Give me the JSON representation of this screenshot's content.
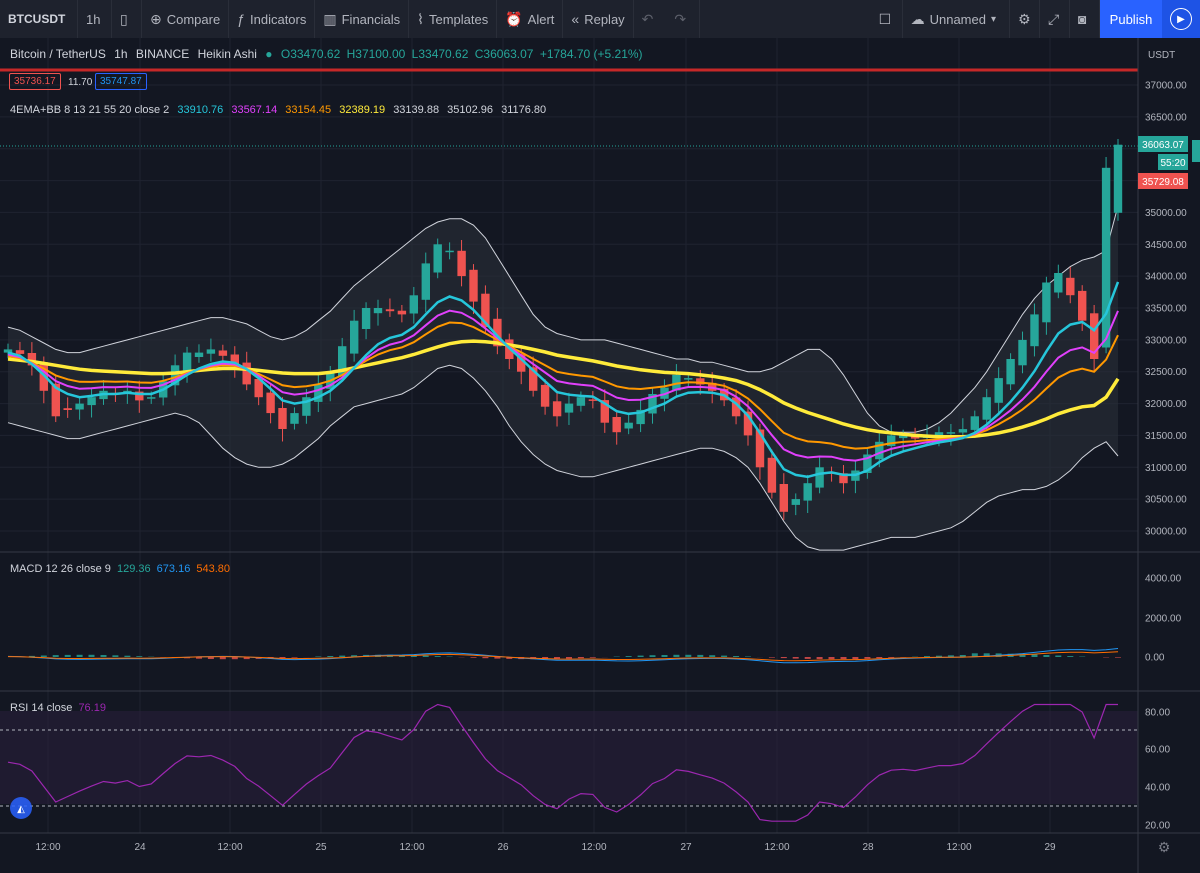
{
  "toolbar": {
    "symbol": "BTCUSDT",
    "interval": "1h",
    "compare": "Compare",
    "indicators": "Indicators",
    "financials": "Financials",
    "templates": "Templates",
    "alert": "Alert",
    "replay": "Replay",
    "layout_name": "Unnamed",
    "publish": "Publish"
  },
  "legend": {
    "pair": "Bitcoin / TetherUS",
    "interval": "1h",
    "exchange": "BINANCE",
    "chart_type": "Heikin Ashi",
    "open": "O33470.62",
    "high": "H37100.00",
    "low": "L33470.62",
    "close": "C36063.07",
    "change": "+1784.70 (+5.21%)",
    "bid": "35736.17",
    "spread": "11.70",
    "ask": "35747.87"
  },
  "ema_legend": {
    "name": "4EMA+BB 8 13 21 55 20 close 2",
    "values": [
      "33910.76",
      "33567.14",
      "33154.45",
      "32389.19",
      "33139.88",
      "35102.96",
      "31176.80"
    ],
    "colors": [
      "#26c6da",
      "#e040fb",
      "#ff9800",
      "#ffeb3b",
      "#d1d4dc",
      "#d1d4dc",
      "#d1d4dc"
    ]
  },
  "macd": {
    "title": "MACD 12 26 close 9",
    "values": [
      "129.36",
      "673.16",
      "543.80"
    ],
    "colors": [
      "#26a69a",
      "#2196f3",
      "#ff6d00"
    ]
  },
  "rsi": {
    "title": "RSI 14 close",
    "value": "76.19"
  },
  "price_axis": {
    "currency": "USDT",
    "ticks": [
      "37000.00",
      "36500.00",
      "36000.00",
      "35500.00",
      "35000.00",
      "34500.00",
      "34000.00",
      "33500.00",
      "33000.00",
      "32500.00",
      "32000.00",
      "31500.00",
      "31000.00",
      "30500.00",
      "30000.00"
    ],
    "last_price": "36063.07",
    "countdown": "55:20",
    "bid_tag": "35729.08"
  },
  "macd_axis": [
    "4000.00",
    "2000.00",
    "0.00"
  ],
  "rsi_axis": [
    "80.00",
    "60.00",
    "40.00",
    "20.00"
  ],
  "time_axis": [
    "12:00",
    "24",
    "12:00",
    "25",
    "12:00",
    "26",
    "12:00",
    "27",
    "12:00",
    "28",
    "12:00",
    "29"
  ],
  "colors": {
    "up": "#26a69a",
    "down": "#ef5350",
    "accent": "#2962ff",
    "background": "#131722"
  },
  "chart_data": {
    "type": "candlestick",
    "title": "Bitcoin / TetherUS 1h BINANCE Heikin Ashi",
    "ylim": [
      29700,
      37250
    ],
    "close": [
      32850,
      32780,
      32600,
      32200,
      31800,
      31900,
      32000,
      32100,
      32200,
      32150,
      32200,
      32050,
      32100,
      32350,
      32600,
      32800,
      32800,
      32850,
      32750,
      32600,
      32300,
      32100,
      31850,
      31600,
      31850,
      32100,
      32300,
      32500,
      32900,
      33300,
      33500,
      33500,
      33450,
      33400,
      33700,
      34200,
      34500,
      34400,
      34000,
      33600,
      33200,
      32900,
      32700,
      32500,
      32200,
      31950,
      31800,
      32000,
      32100,
      32050,
      31700,
      31550,
      31700,
      31900,
      32150,
      32250,
      32450,
      32400,
      32300,
      32200,
      32050,
      31800,
      31500,
      31000,
      30600,
      30300,
      30500,
      30750,
      31000,
      30900,
      30750,
      30950,
      31200,
      31400,
      31500,
      31500,
      31450,
      31500,
      31550,
      31550,
      31600,
      31800,
      32100,
      32400,
      32700,
      33000,
      33400,
      33900,
      34050,
      33700,
      33300,
      32700,
      35700,
      36063
    ],
    "ema8": [
      32800,
      32750,
      32620,
      32450,
      32250,
      32150,
      32100,
      32120,
      32150,
      32150,
      32170,
      32150,
      32150,
      32220,
      32330,
      32450,
      32550,
      32620,
      32660,
      32640,
      32540,
      32400,
      32230,
      32050,
      32000,
      32030,
      32100,
      32200,
      32360,
      32560,
      32760,
      32930,
      33030,
      33080,
      33200,
      33400,
      33590,
      33680,
      33620,
      33470,
      33270,
      33060,
      32870,
      32700,
      32520,
      32350,
      32180,
      32140,
      32120,
      32110,
      32000,
      31880,
      31840,
      31860,
      31930,
      32000,
      32110,
      32170,
      32180,
      32170,
      32130,
      32000,
      31810,
      31540,
      31240,
      30970,
      30880,
      30850,
      30900,
      30920,
      30880,
      30880,
      30950,
      31080,
      31180,
      31250,
      31300,
      31350,
      31390,
      31420,
      31460,
      31540,
      31670,
      31840,
      32030,
      32250,
      32510,
      32820,
      33100,
      33240,
      33280,
      33150,
      33410,
      33910
    ],
    "ema55": [
      32700,
      32680,
      32660,
      32630,
      32600,
      32570,
      32540,
      32520,
      32510,
      32500,
      32490,
      32480,
      32470,
      32470,
      32480,
      32500,
      32520,
      32540,
      32550,
      32550,
      32540,
      32520,
      32500,
      32480,
      32470,
      32470,
      32470,
      32490,
      32520,
      32560,
      32600,
      32640,
      32680,
      32720,
      32770,
      32830,
      32890,
      32940,
      32970,
      32980,
      32970,
      32950,
      32920,
      32890,
      32850,
      32810,
      32760,
      32730,
      32700,
      32670,
      32630,
      32590,
      32560,
      32530,
      32510,
      32490,
      32480,
      32470,
      32450,
      32430,
      32400,
      32360,
      32300,
      32220,
      32120,
      32010,
      31930,
      31860,
      31800,
      31740,
      31680,
      31630,
      31590,
      31560,
      31540,
      31520,
      31500,
      31490,
      31480,
      31480,
      31480,
      31490,
      31510,
      31540,
      31580,
      31630,
      31690,
      31760,
      31840,
      31900,
      31950,
      31970,
      32100,
      32389
    ],
    "bb_upper": [
      33200,
      33150,
      33050,
      32950,
      32850,
      32800,
      32800,
      32850,
      32900,
      32950,
      33000,
      33050,
      33100,
      33150,
      33200,
      33250,
      33300,
      33350,
      33350,
      33300,
      33250,
      33150,
      33050,
      33000,
      33050,
      33150,
      33300,
      33450,
      33650,
      33850,
      34000,
      34150,
      34300,
      34450,
      34600,
      34750,
      34850,
      34900,
      34900,
      34800,
      34600,
      34300,
      34000,
      33700,
      33400,
      33200,
      33100,
      33050,
      33000,
      33000,
      33000,
      32950,
      32900,
      32850,
      32800,
      32750,
      32700,
      32700,
      32650,
      32650,
      32600,
      32550,
      32500,
      32500,
      32550,
      32650,
      32750,
      32850,
      32850,
      32700,
      32450,
      32150,
      31850,
      31650,
      31550,
      31550,
      31550,
      31600,
      31700,
      31850,
      32050,
      32250,
      32500,
      32800,
      33100,
      33400,
      33650,
      33850,
      34000,
      34150,
      34250,
      34300,
      34400,
      35102
    ],
    "bb_lower": [
      31700,
      31650,
      31600,
      31550,
      31500,
      31450,
      31450,
      31500,
      31550,
      31600,
      31650,
      31700,
      31750,
      31800,
      31850,
      31800,
      31700,
      31500,
      31300,
      31150,
      31050,
      31000,
      31000,
      31050,
      31150,
      31300,
      31450,
      31650,
      31800,
      31950,
      32000,
      32050,
      32100,
      32150,
      32250,
      32400,
      32550,
      32600,
      32550,
      32400,
      32200,
      31950,
      31650,
      31400,
      31200,
      31050,
      30950,
      30900,
      30850,
      30850,
      30900,
      30950,
      31000,
      31050,
      31100,
      31150,
      31200,
      31250,
      31300,
      31300,
      31250,
      31150,
      31000,
      30750,
      30450,
      30150,
      29900,
      29750,
      29700,
      29700,
      29700,
      29750,
      29800,
      29850,
      29900,
      29900,
      29900,
      29950,
      30000,
      30050,
      30150,
      30300,
      30450,
      30550,
      30600,
      30650,
      30650,
      30700,
      30800,
      30950,
      31150,
      31300,
      31400,
      31177
    ]
  }
}
